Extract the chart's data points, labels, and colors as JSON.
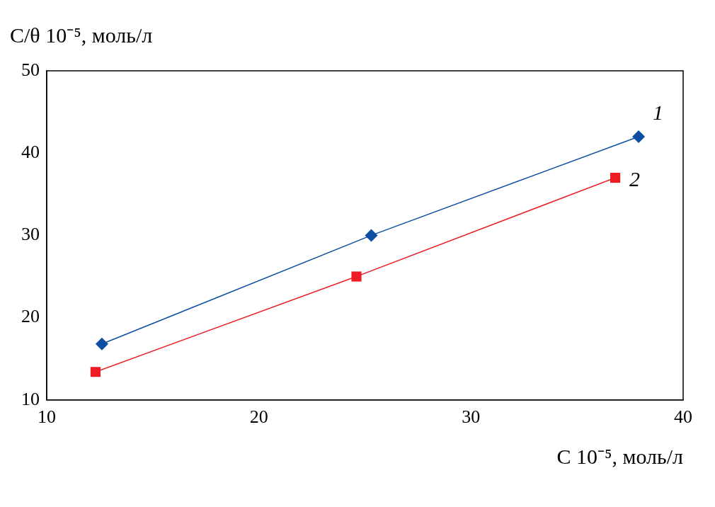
{
  "chart_data": {
    "type": "line",
    "xlabel": "C 10⁻⁵, моль/л",
    "ylabel": "C/θ 10⁻⁵, моль/л",
    "xlim": [
      10,
      40
    ],
    "xticks": [
      10,
      20,
      30,
      40
    ],
    "ylim": [
      10,
      50
    ],
    "yticks": [
      10,
      20,
      30,
      40,
      50
    ],
    "grid": false,
    "legend": false,
    "line_style": "solid",
    "series": [
      {
        "name": "1",
        "color": "#0b4ea2",
        "marker": "diamond",
        "x": [
          12.6,
          25.3,
          37.9
        ],
        "values": [
          16.8,
          30,
          42
        ]
      },
      {
        "name": "2",
        "color": "#ed1c24",
        "marker": "square",
        "x": [
          12.3,
          24.6,
          36.8
        ],
        "values": [
          13.4,
          25,
          37
        ]
      }
    ]
  }
}
